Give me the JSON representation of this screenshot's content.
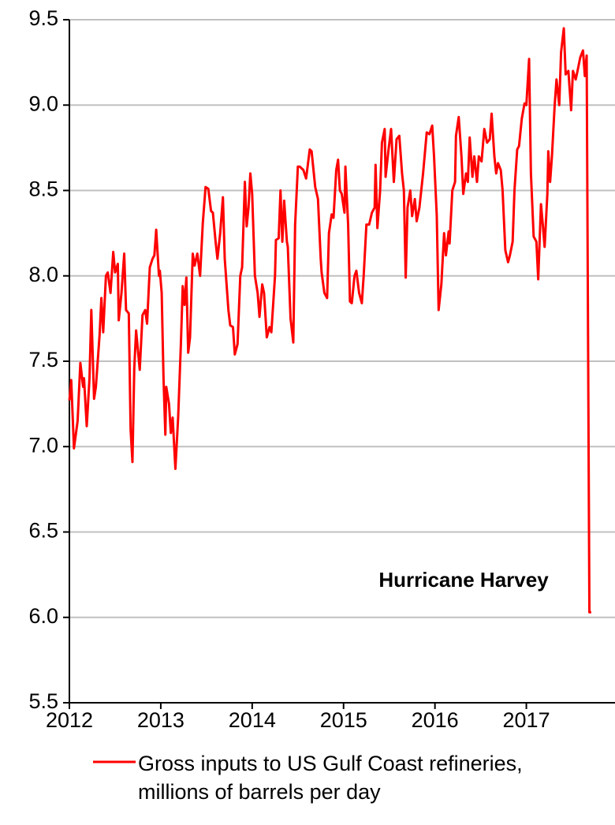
{
  "chart_data": {
    "type": "line",
    "annotations": [
      "Hurricane Harvey"
    ],
    "x": [
      2012.0,
      2012.02,
      2012.05,
      2012.09,
      2012.12,
      2012.15,
      2012.16,
      2012.19,
      2012.22,
      2012.24,
      2012.27,
      2012.29,
      2012.33,
      2012.35,
      2012.37,
      2012.4,
      2012.42,
      2012.45,
      2012.48,
      2012.5,
      2012.53,
      2012.54,
      2012.57,
      2012.6,
      2012.62,
      2012.65,
      2012.67,
      2012.69,
      2012.71,
      2012.73,
      2012.77,
      2012.8,
      2012.83,
      2012.85,
      2012.88,
      2012.91,
      2012.93,
      2012.95,
      2012.98,
      2012.99,
      2013.01,
      2013.03,
      2013.05,
      2013.06,
      2013.09,
      2013.11,
      2013.13,
      2013.16,
      2013.19,
      2013.22,
      2013.24,
      2013.26,
      2013.28,
      2013.3,
      2013.32,
      2013.35,
      2013.37,
      2013.4,
      2013.43,
      2013.46,
      2013.49,
      2013.52,
      2013.55,
      2013.57,
      2013.6,
      2013.62,
      2013.65,
      2013.68,
      2013.7,
      2013.74,
      2013.76,
      2013.79,
      2013.81,
      2013.84,
      2013.87,
      2013.89,
      2013.92,
      2013.94,
      2013.96,
      2013.98,
      2014.0,
      2014.03,
      2014.06,
      2014.08,
      2014.11,
      2014.13,
      2014.16,
      2014.19,
      2014.21,
      2014.25,
      2014.26,
      2014.29,
      2014.31,
      2014.33,
      2014.35,
      2014.38,
      2014.39,
      2014.42,
      2014.45,
      2014.47,
      2014.5,
      2014.52,
      2014.56,
      2014.59,
      2014.63,
      2014.65,
      2014.69,
      2014.72,
      2014.75,
      2014.76,
      2014.79,
      2014.82,
      2014.84,
      2014.87,
      2014.89,
      2014.92,
      2014.94,
      2014.96,
      2014.98,
      2015.01,
      2015.02,
      2015.05,
      2015.07,
      2015.09,
      2015.12,
      2015.14,
      2015.17,
      2015.2,
      2015.22,
      2015.25,
      2015.28,
      2015.31,
      2015.34,
      2015.35,
      2015.37,
      2015.4,
      2015.42,
      2015.45,
      2015.46,
      2015.49,
      2015.52,
      2015.55,
      2015.58,
      2015.61,
      2015.64,
      2015.66,
      2015.68,
      2015.7,
      2015.73,
      2015.75,
      2015.78,
      2015.8,
      2015.83,
      2015.87,
      2015.91,
      2015.94,
      2015.97,
      2015.99,
      2016.02,
      2016.04,
      2016.07,
      2016.1,
      2016.12,
      2016.15,
      2016.16,
      2016.19,
      2016.22,
      2016.23,
      2016.26,
      2016.29,
      2016.31,
      2016.34,
      2016.36,
      2016.38,
      2016.41,
      2016.43,
      2016.46,
      2016.48,
      2016.51,
      2016.54,
      2016.57,
      2016.6,
      2016.62,
      2016.65,
      2016.67,
      2016.69,
      2016.72,
      2016.74,
      2016.77,
      2016.8,
      2016.82,
      2016.85,
      2016.87,
      2016.9,
      2016.92,
      2016.95,
      2016.98,
      2017.0,
      2017.03,
      2017.05,
      2017.08,
      2017.11,
      2017.13,
      2017.16,
      2017.18,
      2017.2,
      2017.23,
      2017.24,
      2017.26,
      2017.28,
      2017.31,
      2017.33,
      2017.36,
      2017.38,
      2017.41,
      2017.43,
      2017.46,
      2017.49,
      2017.51,
      2017.54,
      2017.56,
      2017.59,
      2017.62,
      2017.64,
      2017.66,
      2017.69,
      2017.71
    ],
    "series": [
      {
        "name": "Gross inputs to US Gulf Coast refineries, millions of barrels per day",
        "color": "#ff0000",
        "values": [
          7.27,
          7.39,
          6.99,
          7.15,
          7.49,
          7.35,
          7.4,
          7.12,
          7.4,
          7.8,
          7.28,
          7.35,
          7.65,
          7.87,
          7.67,
          8.0,
          8.02,
          7.9,
          8.14,
          8.02,
          8.07,
          7.74,
          7.9,
          8.13,
          7.8,
          7.78,
          7.1,
          6.91,
          7.46,
          7.68,
          7.45,
          7.77,
          7.8,
          7.72,
          8.05,
          8.1,
          8.12,
          8.27,
          8.0,
          8.03,
          7.9,
          7.4,
          7.07,
          7.35,
          7.25,
          7.08,
          7.17,
          6.87,
          7.17,
          7.6,
          7.94,
          7.83,
          7.99,
          7.55,
          7.64,
          8.13,
          8.06,
          8.13,
          8.0,
          8.31,
          8.52,
          8.51,
          8.38,
          8.37,
          8.2,
          8.1,
          8.25,
          8.46,
          8.1,
          7.8,
          7.71,
          7.7,
          7.54,
          7.6,
          8.0,
          8.05,
          8.55,
          8.29,
          8.4,
          8.6,
          8.48,
          8.0,
          7.9,
          7.76,
          7.95,
          7.9,
          7.64,
          7.7,
          7.67,
          8.0,
          8.21,
          8.22,
          8.5,
          8.2,
          8.44,
          8.2,
          8.17,
          7.75,
          7.61,
          8.3,
          8.64,
          8.64,
          8.62,
          8.57,
          8.74,
          8.73,
          8.52,
          8.45,
          8.1,
          8.02,
          7.9,
          7.87,
          8.25,
          8.36,
          8.34,
          8.62,
          8.68,
          8.5,
          8.48,
          8.37,
          8.64,
          8.3,
          7.85,
          7.84,
          8.0,
          8.03,
          7.9,
          7.84,
          8.0,
          8.3,
          8.3,
          8.37,
          8.4,
          8.65,
          8.28,
          8.5,
          8.78,
          8.86,
          8.58,
          8.73,
          8.86,
          8.55,
          8.8,
          8.82,
          8.6,
          8.5,
          7.99,
          8.4,
          8.5,
          8.35,
          8.45,
          8.32,
          8.4,
          8.6,
          8.84,
          8.83,
          8.88,
          8.7,
          8.35,
          7.8,
          7.95,
          8.25,
          8.12,
          8.26,
          8.19,
          8.5,
          8.55,
          8.82,
          8.93,
          8.7,
          8.48,
          8.6,
          8.55,
          8.81,
          8.58,
          8.7,
          8.55,
          8.7,
          8.67,
          8.86,
          8.78,
          8.8,
          8.95,
          8.7,
          8.6,
          8.66,
          8.62,
          8.5,
          8.15,
          8.08,
          8.12,
          8.2,
          8.5,
          8.74,
          8.76,
          8.92,
          9.01,
          9.0,
          9.27,
          8.6,
          8.23,
          8.2,
          7.98,
          8.42,
          8.3,
          8.17,
          8.48,
          8.73,
          8.55,
          8.7,
          9.0,
          9.15,
          9.0,
          9.31,
          9.45,
          9.18,
          9.2,
          8.97,
          9.2,
          9.15,
          9.2,
          9.28,
          9.32,
          9.17,
          9.29,
          6.03,
          6.03
        ]
      }
    ],
    "xlim": [
      2012,
      2017.97
    ],
    "xticks": [
      2012,
      2013,
      2014,
      2015,
      2016,
      2017
    ],
    "ylim": [
      5.5,
      9.5
    ],
    "yticks": [
      5.5,
      {
        "value": 6,
        "label": "6.0"
      },
      6.5,
      {
        "value": 7,
        "label": "7.0"
      },
      7.5,
      {
        "value": 8,
        "label": "8.0"
      },
      8.5,
      {
        "value": 9,
        "label": "9.0"
      },
      9.5
    ],
    "grid": true
  }
}
